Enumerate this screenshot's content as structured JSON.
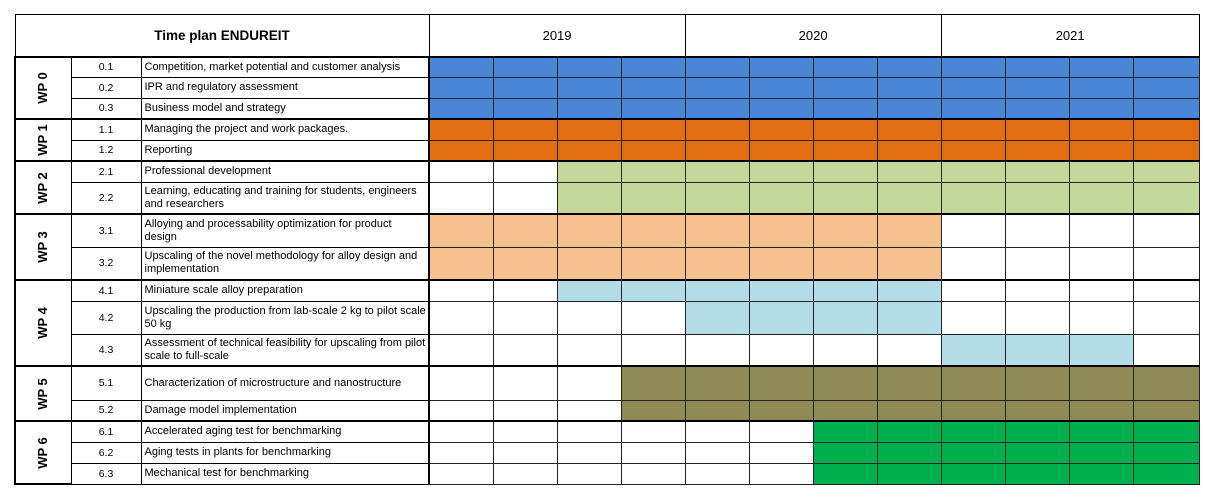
{
  "title": "Time plan ENDUREIT",
  "years": [
    "2019",
    "2020",
    "2021"
  ],
  "quarters_per_year": 4,
  "colors": {
    "blue": "#4a86d6",
    "orange": "#e16f10",
    "green": "#c4d89b",
    "peach": "#f6c08f",
    "lightblue": "#b4dce6",
    "olive": "#8f8955",
    "brightgreen": "#00b04f"
  },
  "work_packages": [
    {
      "wp": "WP 0",
      "tasks": [
        {
          "code": "0.1",
          "desc": "Competition, market potential and customer analysis",
          "color": "blue",
          "active": [
            1,
            1,
            1,
            1,
            1,
            1,
            1,
            1,
            1,
            1,
            1,
            1
          ]
        },
        {
          "code": "0.2",
          "desc": "IPR and regulatory assessment",
          "color": "blue",
          "active": [
            1,
            1,
            1,
            1,
            1,
            1,
            1,
            1,
            1,
            1,
            1,
            1
          ]
        },
        {
          "code": "0.3",
          "desc": "Business model and strategy",
          "color": "blue",
          "active": [
            1,
            1,
            1,
            1,
            1,
            1,
            1,
            1,
            1,
            1,
            1,
            1
          ]
        }
      ]
    },
    {
      "wp": "WP 1",
      "tasks": [
        {
          "code": "1.1",
          "desc": "Managing the project and work packages.",
          "color": "orange",
          "active": [
            1,
            1,
            1,
            1,
            1,
            1,
            1,
            1,
            1,
            1,
            1,
            1
          ]
        },
        {
          "code": "1.2",
          "desc": "Reporting",
          "color": "orange",
          "active": [
            1,
            1,
            1,
            1,
            1,
            1,
            1,
            1,
            1,
            1,
            1,
            1
          ]
        }
      ]
    },
    {
      "wp": "WP 2",
      "tasks": [
        {
          "code": "2.1",
          "desc": "Professional development",
          "color": "green",
          "active": [
            0,
            0,
            1,
            1,
            1,
            1,
            1,
            1,
            1,
            1,
            1,
            1
          ]
        },
        {
          "code": "2.2",
          "desc": "Learning, educating and training for students, engineers and researchers",
          "color": "green",
          "active": [
            0,
            0,
            1,
            1,
            1,
            1,
            1,
            1,
            1,
            1,
            1,
            1
          ]
        }
      ]
    },
    {
      "wp": "WP 3",
      "tasks": [
        {
          "code": "3.1",
          "desc": "Alloying and processability optimization for product design",
          "color": "peach",
          "active": [
            1,
            1,
            1,
            1,
            1,
            1,
            1,
            1,
            0,
            0,
            0,
            0
          ]
        },
        {
          "code": "3.2",
          "desc": "Upscaling of the novel methodology for alloy design and implementation",
          "color": "peach",
          "active": [
            1,
            1,
            1,
            1,
            1,
            1,
            1,
            1,
            0,
            0,
            0,
            0
          ]
        }
      ]
    },
    {
      "wp": "WP 4",
      "tasks": [
        {
          "code": "4.1",
          "desc": "Miniature scale alloy preparation",
          "color": "lightblue",
          "active": [
            0,
            0,
            1,
            1,
            1,
            1,
            1,
            1,
            0,
            0,
            0,
            0
          ]
        },
        {
          "code": "4.2",
          "desc": "Upscaling the production from lab-scale 2 kg to pilot scale 50 kg",
          "color": "lightblue",
          "active": [
            0,
            0,
            0,
            0,
            1,
            1,
            1,
            1,
            0,
            0,
            0,
            0
          ]
        },
        {
          "code": "4.3",
          "desc": "Assessment of technical feasibility for upscaling from pilot scale to full-scale",
          "color": "lightblue",
          "active": [
            0,
            0,
            0,
            0,
            0,
            0,
            0,
            0,
            1,
            1,
            1,
            0
          ]
        }
      ]
    },
    {
      "wp": "WP 5",
      "tasks": [
        {
          "code": "5.1",
          "desc": "Characterization of microstructure and nanostructure",
          "color": "olive",
          "active": [
            0,
            0,
            0,
            1,
            1,
            1,
            1,
            1,
            1,
            1,
            1,
            1
          ]
        },
        {
          "code": "5.2",
          "desc": "Damage model implementation",
          "color": "olive",
          "active": [
            0,
            0,
            0,
            1,
            1,
            1,
            1,
            1,
            1,
            1,
            1,
            1
          ]
        }
      ]
    },
    {
      "wp": "WP 6",
      "tasks": [
        {
          "code": "6.1",
          "desc": "Accelerated aging test for benchmarking",
          "color": "brightgreen",
          "active": [
            0,
            0,
            0,
            0,
            0,
            0,
            1,
            1,
            1,
            1,
            1,
            1
          ]
        },
        {
          "code": "6.2",
          "desc": "Aging tests in plants for benchmarking",
          "color": "brightgreen",
          "active": [
            0,
            0,
            0,
            0,
            0,
            0,
            1,
            1,
            1,
            1,
            1,
            1
          ]
        },
        {
          "code": "6.3",
          "desc": "Mechanical test for benchmarking",
          "color": "brightgreen",
          "active": [
            0,
            0,
            0,
            0,
            0,
            0,
            1,
            1,
            1,
            1,
            1,
            1
          ]
        }
      ]
    }
  ]
}
